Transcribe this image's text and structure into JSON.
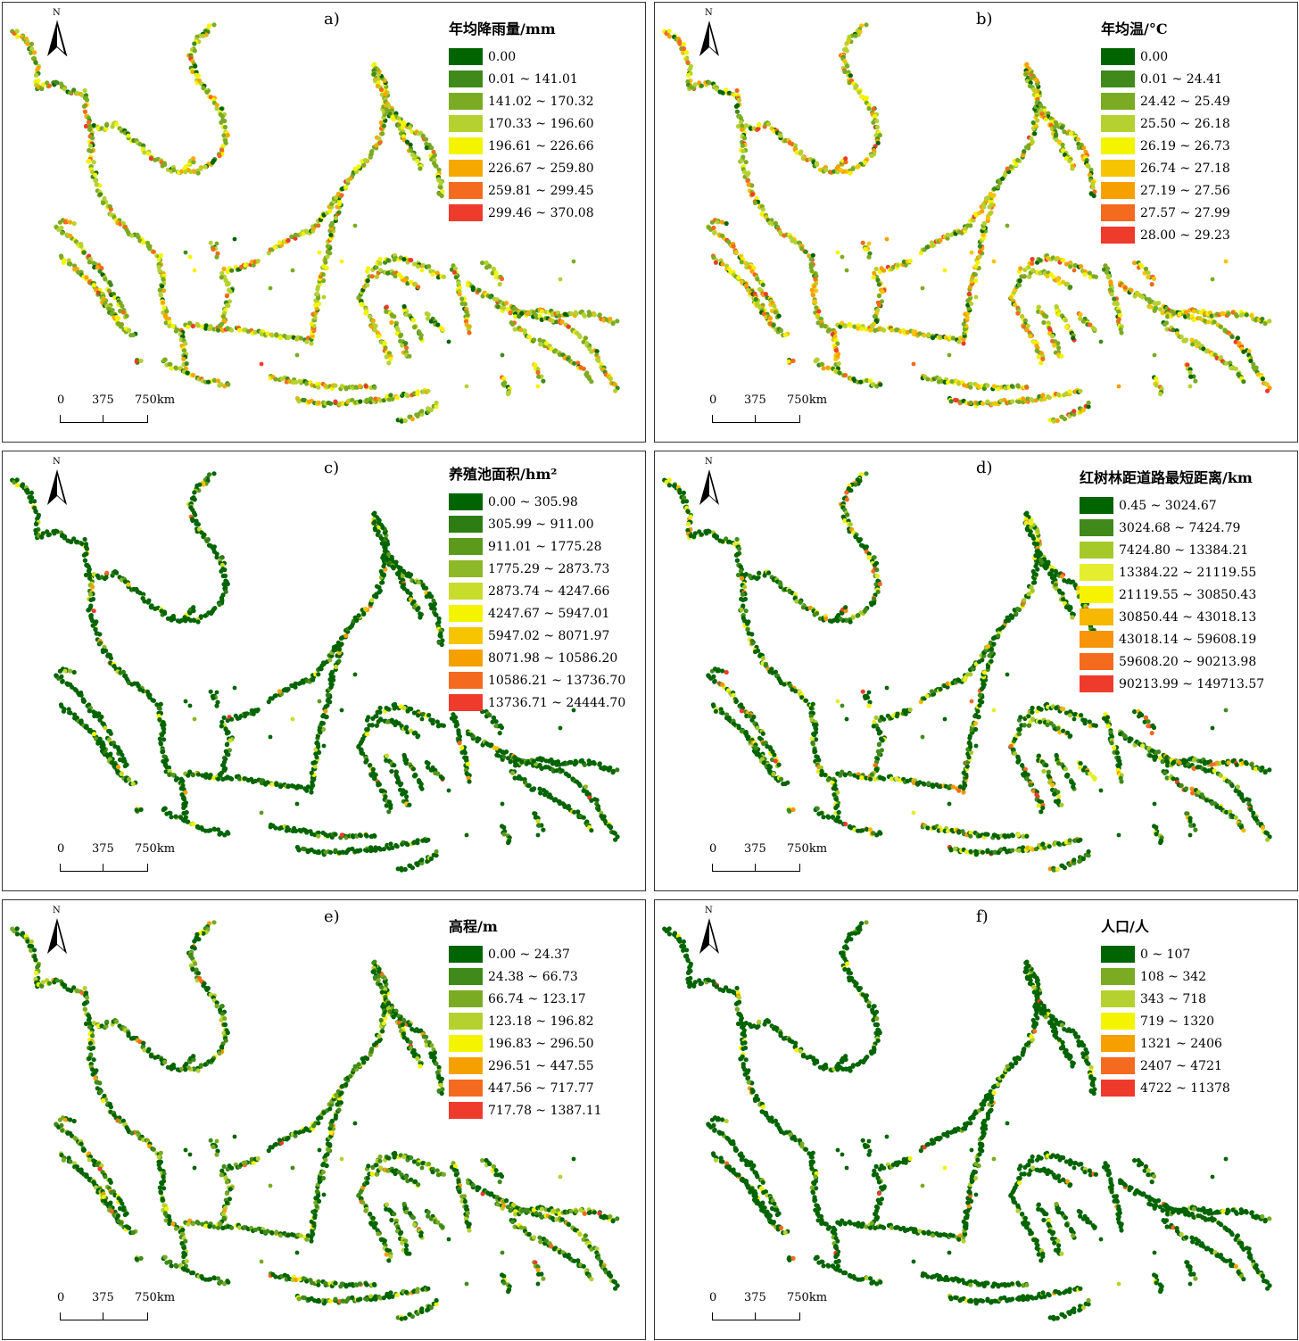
{
  "scale_bar": {
    "t0": "0",
    "t1": "375",
    "t2": "750km"
  },
  "north_label": "N",
  "panels": [
    {
      "label": "a)",
      "legend_title": "年均降雨量/mm",
      "palette": [
        "#006400",
        "#3f8a1a",
        "#7aab22",
        "#b5d130",
        "#f4f400",
        "#f6a800",
        "#f46a1e",
        "#ef3b2c"
      ],
      "items": [
        "0.00",
        "0.01 ~ 141.01",
        "141.02 ~ 170.32",
        "170.33 ~ 196.60",
        "196.61 ~ 226.66",
        "226.67 ~ 259.80",
        "259.81 ~ 299.45",
        "299.46 ~ 370.08"
      ],
      "weights": [
        0.06,
        0.08,
        0.26,
        0.25,
        0.15,
        0.12,
        0.06,
        0.02
      ]
    },
    {
      "label": "b)",
      "legend_title": "年均温/°C",
      "palette": [
        "#006400",
        "#3f8a1a",
        "#7aab22",
        "#b5d130",
        "#f4f400",
        "#f6c400",
        "#f6a000",
        "#f46a1e",
        "#ef3b2c"
      ],
      "items": [
        "0.00",
        "0.01 ~ 24.41",
        "24.42 ~ 25.49",
        "25.50 ~ 26.18",
        "26.19 ~ 26.73",
        "26.74 ~ 27.18",
        "27.19 ~ 27.56",
        "27.57 ~ 27.99",
        "28.00 ~ 29.23"
      ],
      "weights": [
        0.06,
        0.07,
        0.22,
        0.22,
        0.14,
        0.11,
        0.09,
        0.06,
        0.03
      ]
    },
    {
      "label": "c)",
      "legend_title": "养殖池面积/hm²",
      "palette": [
        "#006400",
        "#2e7d12",
        "#5c9a1c",
        "#8db827",
        "#c8dc2c",
        "#f4f400",
        "#f6c400",
        "#f6a000",
        "#f46a1e",
        "#ef3b2c"
      ],
      "items": [
        "0.00 ~ 305.98",
        "305.99 ~ 911.00",
        "911.01 ~ 1775.28",
        "1775.29 ~ 2873.73",
        "2873.74 ~ 4247.66",
        "4247.67 ~ 5947.01",
        "5947.02 ~ 8071.97",
        "8071.98 ~ 10586.20",
        "10586.21 ~ 13736.70",
        "13736.71 ~ 24444.70"
      ],
      "weights": [
        0.8,
        0.07,
        0.04,
        0.03,
        0.02,
        0.015,
        0.01,
        0.008,
        0.005,
        0.002
      ]
    },
    {
      "label": "d)",
      "legend_title": "红树林距道路最短距离/km",
      "palette": [
        "#006400",
        "#3f8a1a",
        "#a6c92a",
        "#e4ed2e",
        "#f6f200",
        "#f6b800",
        "#f6940a",
        "#f46a1e",
        "#ef3b2c"
      ],
      "items": [
        "0.45 ~ 3024.67",
        "3024.68 ~ 7424.79",
        "7424.80 ~ 13384.21",
        "13384.22 ~ 21119.55",
        "21119.55 ~ 30850.43",
        "30850.44 ~ 43018.13",
        "43018.14 ~ 59608.19",
        "59608.20 ~ 90213.98",
        "90213.99 ~ 149713.57"
      ],
      "weights": [
        0.55,
        0.18,
        0.09,
        0.06,
        0.04,
        0.03,
        0.025,
        0.015,
        0.01
      ]
    },
    {
      "label": "e)",
      "legend_title": "高程/m",
      "palette": [
        "#006400",
        "#3f8a1a",
        "#7aab22",
        "#b5d130",
        "#f4f400",
        "#f6a000",
        "#f46a1e",
        "#ef3b2c"
      ],
      "items": [
        "0.00 ~ 24.37",
        "24.38 ~ 66.73",
        "66.74 ~ 123.17",
        "123.18 ~ 196.82",
        "196.83 ~ 296.50",
        "296.51 ~ 447.55",
        "447.56 ~ 717.77",
        "717.78 ~ 1387.11"
      ],
      "weights": [
        0.48,
        0.2,
        0.14,
        0.09,
        0.05,
        0.025,
        0.01,
        0.005
      ]
    },
    {
      "label": "f)",
      "legend_title": "人口/人",
      "palette": [
        "#006400",
        "#7aab22",
        "#b5d130",
        "#f4f400",
        "#f6a000",
        "#f46a1e",
        "#ef3b2c"
      ],
      "items": [
        "0 ~ 107",
        "108 ~ 342",
        "343 ~ 718",
        "719 ~ 1320",
        "1321 ~ 2406",
        "2407 ~ 4721",
        "4722 ~ 11378"
      ],
      "weights": [
        0.86,
        0.06,
        0.04,
        0.02,
        0.01,
        0.006,
        0.004
      ]
    }
  ]
}
